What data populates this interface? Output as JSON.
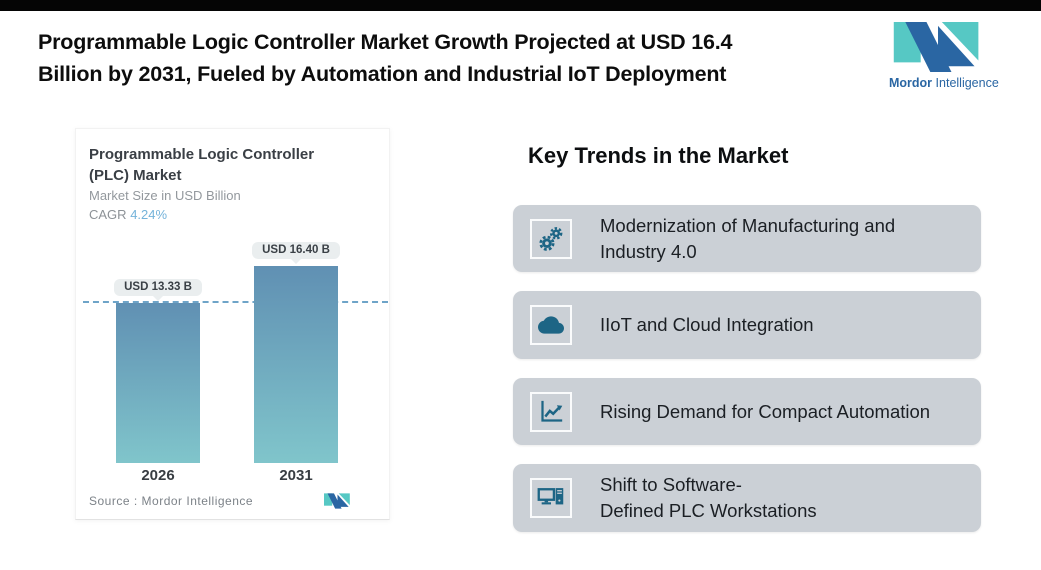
{
  "header": {
    "title": "Programmable Logic Controller Market Growth Projected at USD 16.4\nBillion by 2031, Fueled by Automation and Industrial IoT Deployment",
    "brand": {
      "name_bold": "Mordor",
      "name_light": "Intelligence"
    }
  },
  "chart_data": {
    "type": "bar",
    "title": "Programmable Logic Controller\n(PLC) Market",
    "subtitle": "Market Size in USD Billion",
    "cagr_label": "CAGR",
    "cagr_value": "4.24%",
    "categories": [
      "2026",
      "2031"
    ],
    "values": [
      13.33,
      16.4
    ],
    "bar_labels": [
      "USD 13.33 B",
      "USD 16.40 B"
    ],
    "unit": "USD Billion",
    "ylim": [
      0,
      18.5
    ],
    "reference_line_at": 13.33,
    "grid": "off",
    "legend": "none",
    "source": "Source :  Mordor Intelligence"
  },
  "trends": {
    "heading": "Key Trends in the Market",
    "items": [
      {
        "icon": "gears-icon",
        "label": "Modernization of Manufacturing and\nIndustry 4.0"
      },
      {
        "icon": "cloud-icon",
        "label": "IIoT and Cloud Integration"
      },
      {
        "icon": "line-chart-icon",
        "label": "Rising Demand for Compact Automation"
      },
      {
        "icon": "workstation-icon",
        "label": "Shift to Software-\nDefined PLC Workstations"
      }
    ]
  },
  "colors": {
    "brand_teal": "#56c8c4",
    "brand_blue": "#2a66a3",
    "icon_teal_blue": "#1d6585",
    "trend_card_bg": "#cbd0d6",
    "bar_gradient_top": "#6090b3",
    "bar_gradient_bottom": "#80c5cb",
    "cagr_value_color": "#74b3da",
    "dashed_line": "#6ea4c8",
    "pill_bg": "#eaeeef"
  }
}
